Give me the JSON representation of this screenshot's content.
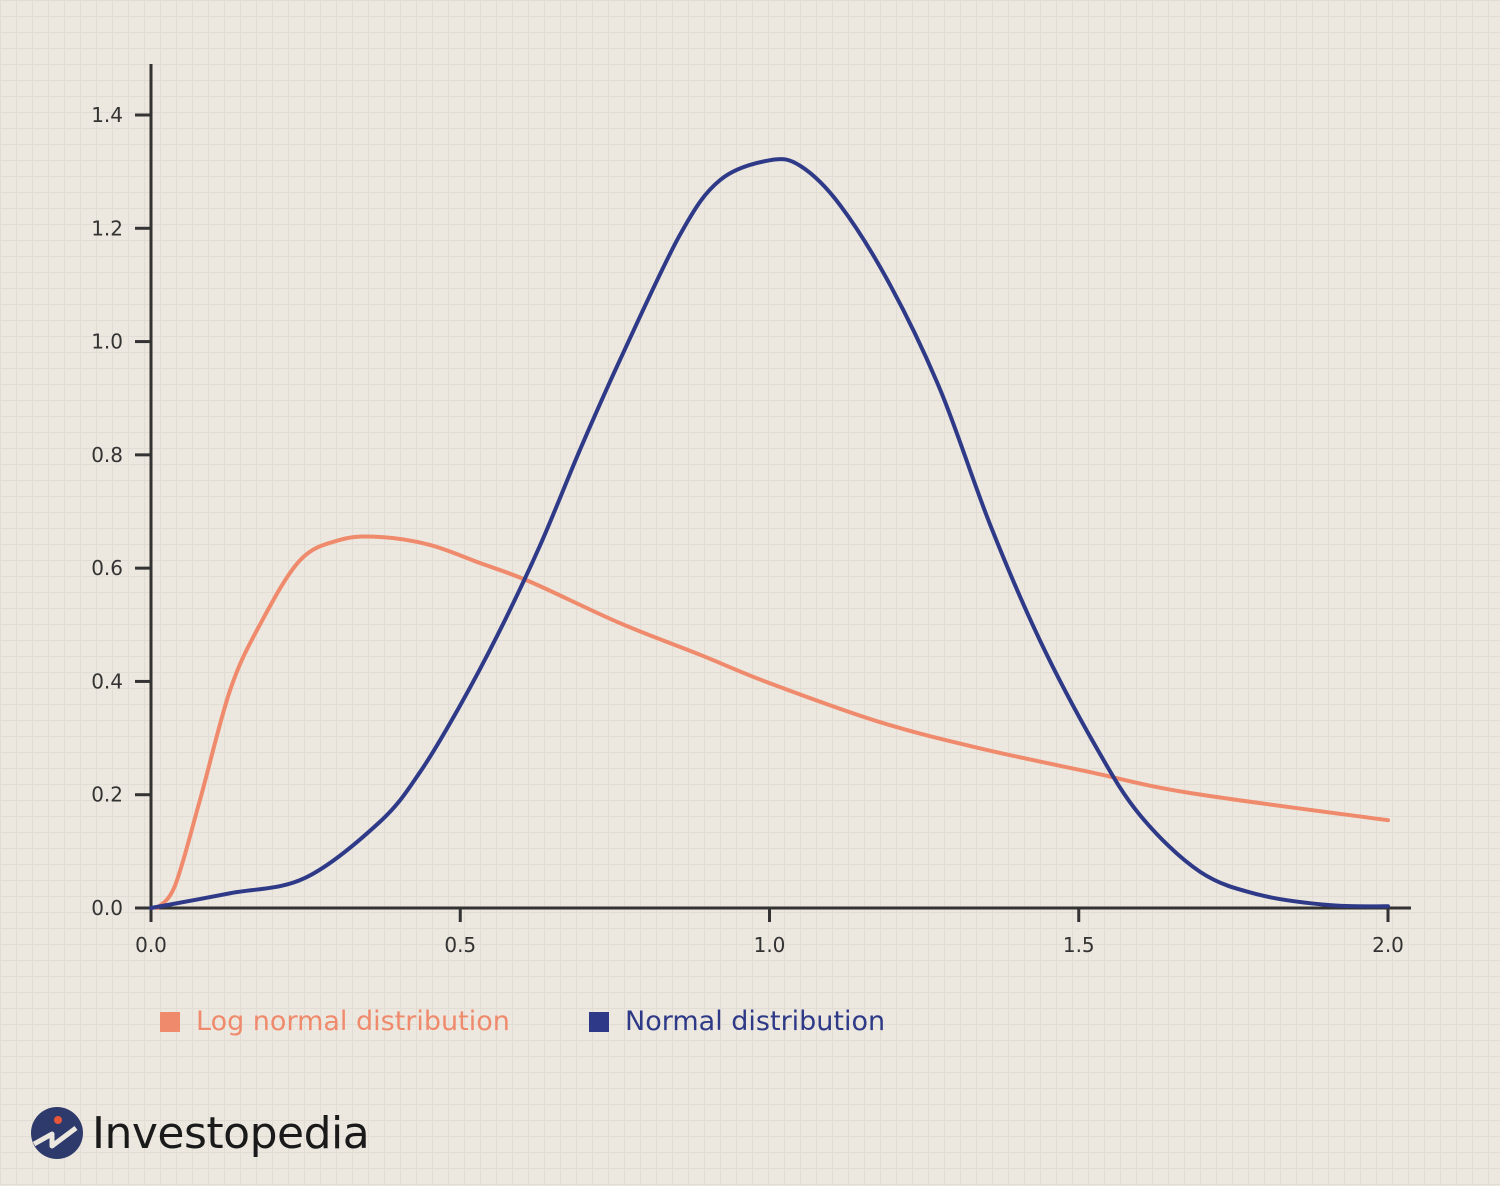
{
  "chart_data": {
    "type": "line",
    "title": "",
    "xlabel": "",
    "ylabel": "",
    "xlim": [
      0,
      2.0
    ],
    "ylim": [
      0,
      1.4
    ],
    "x_ticks": [
      "0.0",
      "0.5",
      "1.0",
      "1.5",
      "2.0"
    ],
    "x_tick_values": [
      0,
      0.5,
      1.0,
      1.5,
      2.0
    ],
    "y_ticks": [
      "0.0",
      "0.2",
      "0.4",
      "0.6",
      "0.8",
      "1.0",
      "1.2",
      "1.4"
    ],
    "y_tick_values": [
      0,
      0.2,
      0.4,
      0.6,
      0.8,
      1.0,
      1.2,
      1.4
    ],
    "grid": true,
    "legend_position": "bottom-left",
    "series": [
      {
        "name": "Log normal distribution",
        "color": "#ef8a6c",
        "x": [
          0.01,
          0.039,
          0.079,
          0.128,
          0.176,
          0.241,
          0.306,
          0.37,
          0.451,
          0.532,
          0.613,
          0.758,
          0.888,
          1.0,
          1.179,
          1.34,
          1.518,
          1.68,
          2.0
        ],
        "y": [
          0,
          0.04,
          0.19,
          0.385,
          0.5,
          0.614,
          0.65,
          0.655,
          0.641,
          0.609,
          0.576,
          0.503,
          0.447,
          0.397,
          0.328,
          0.282,
          0.24,
          0.203,
          0.155
        ]
      },
      {
        "name": "Normal distribution",
        "color": "#2e3a87",
        "x": [
          0,
          0.128,
          0.249,
          0.37,
          0.435,
          0.5,
          0.564,
          0.629,
          0.694,
          0.758,
          0.855,
          0.92,
          1.0,
          1.05,
          1.114,
          1.195,
          1.276,
          1.357,
          1.437,
          1.526,
          1.599,
          1.696,
          1.793,
          1.906,
          2.0
        ],
        "y": [
          0,
          0.026,
          0.053,
          0.152,
          0.24,
          0.358,
          0.49,
          0.64,
          0.81,
          0.967,
          1.188,
          1.285,
          1.32,
          1.31,
          1.241,
          1.1,
          0.915,
          0.676,
          0.473,
          0.288,
          0.164,
          0.064,
          0.023,
          0.005,
          0.003
        ]
      }
    ]
  },
  "logo": {
    "text": "Investopedia"
  }
}
